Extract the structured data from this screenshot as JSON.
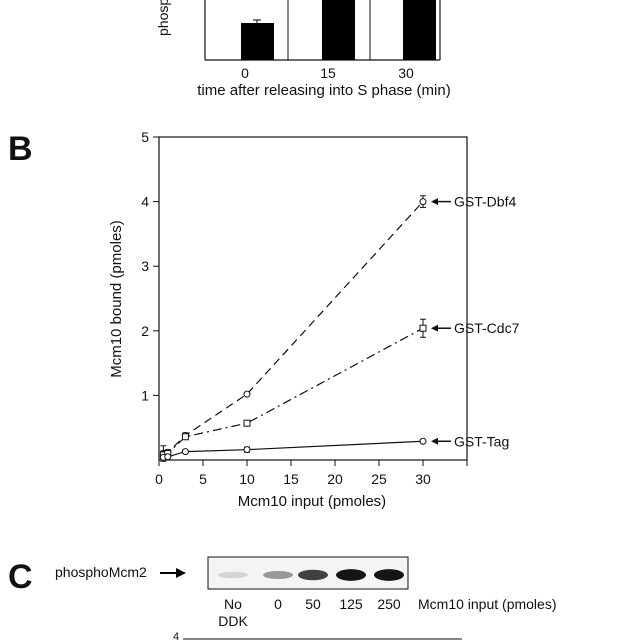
{
  "panel_a": {
    "ylabel_fragment": "phosp",
    "xlabel": "time after releasing into S phase (min)",
    "chart_data": {
      "type": "bar",
      "categories": [
        "0",
        "15",
        "30"
      ],
      "values": [
        0.6,
        null,
        null
      ],
      "xlabel": "time after releasing into S phase (min)",
      "ylabel": "phosp",
      "note": "panel cropped at top; only lower part of bars visible"
    }
  },
  "panel_b": {
    "letter": "B",
    "xlabel": "Mcm10 input (pmoles)",
    "ylabel": "Mcm10 bound (pmoles)",
    "chart_data": {
      "type": "line",
      "xlabel": "Mcm10 input (pmoles)",
      "ylabel": "Mcm10 bound (pmoles)",
      "xlim": [
        0,
        35
      ],
      "ylim": [
        0,
        5
      ],
      "xticks": [
        0,
        5,
        10,
        15,
        20,
        25,
        30
      ],
      "yticks": [
        1,
        2,
        3,
        4,
        5
      ],
      "series": [
        {
          "name": "GST-Dbf4",
          "marker": "circle",
          "dash": "long-dash",
          "x": [
            0.5,
            1,
            3,
            10,
            30
          ],
          "y": [
            0.1,
            0.12,
            0.38,
            1.02,
            4.0
          ],
          "err": [
            0.12,
            0.04,
            0.04,
            0.02,
            0.09
          ]
        },
        {
          "name": "GST-Cdc7",
          "marker": "square",
          "dash": "dash-dot",
          "x": [
            0.5,
            1,
            3,
            10,
            30
          ],
          "y": [
            0.08,
            0.1,
            0.36,
            0.57,
            2.04
          ],
          "err": [
            0.06,
            0.04,
            0.04,
            0.03,
            0.14
          ]
        },
        {
          "name": "GST-Tag",
          "marker": "circle",
          "dash": "solid",
          "x": [
            0.5,
            1,
            3,
            10,
            30
          ],
          "y": [
            0.04,
            0.05,
            0.13,
            0.16,
            0.29
          ],
          "err": [
            0.02,
            0.02,
            0.02,
            0.04,
            0.02
          ]
        }
      ]
    }
  },
  "panel_c": {
    "letter": "C",
    "band_label": "phosphoMcm2",
    "lane_labels": [
      [
        "No",
        "DDK"
      ],
      [
        "0"
      ],
      [
        "50"
      ],
      [
        "125"
      ],
      [
        "250"
      ]
    ],
    "band_intensity": [
      0.08,
      0.35,
      0.75,
      0.95,
      0.95
    ],
    "axis_caption": "Mcm10 input (pmoles)",
    "next_axis_tick": "4"
  }
}
